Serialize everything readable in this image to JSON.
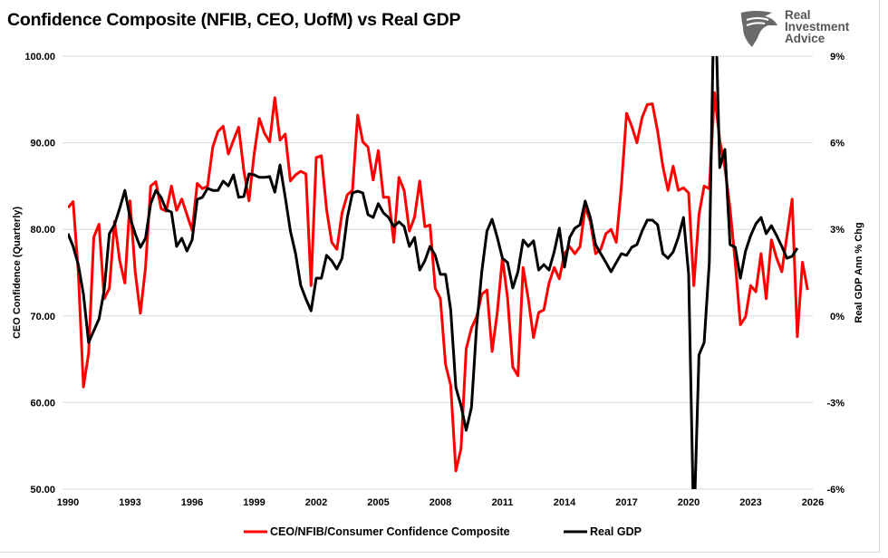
{
  "logo": {
    "text": "Real Investment Advice",
    "lines": [
      "Real",
      "Investment",
      "Advice"
    ]
  },
  "colors": {
    "series1": "#ff0000",
    "series2": "#000000",
    "grid": "#d9d9d9"
  },
  "chart_data": {
    "type": "line",
    "title": "Confidence Composite (NFIB, CEO, UofM) vs Real GDP",
    "ylabel": "CEO Confidence (Quarterly)",
    "y2label": "Real GDP Ann % Chg",
    "xlim": [
      1990,
      2026
    ],
    "ylim": [
      50,
      100
    ],
    "y2lim": [
      -6,
      9
    ],
    "xticks": [
      "1990",
      "1993",
      "1996",
      "1999",
      "2002",
      "2005",
      "2008",
      "2011",
      "2014",
      "2017",
      "2020",
      "2023",
      "2026"
    ],
    "yticks": [
      "100.00",
      "90.00",
      "80.00",
      "70.00",
      "60.00",
      "50.00"
    ],
    "y2ticks": [
      "9%",
      "6%",
      "3%",
      "0%",
      "-3%",
      "-6%"
    ],
    "grid": "horizontal",
    "legend_position": "bottom",
    "series": [
      {
        "name": "CEO/NFIB/Consumer Confidence Composite",
        "axis": "left",
        "frequency": "quarterly",
        "x_range": [
          "1990Q1",
          "2025Q4"
        ],
        "values": [
          82.5,
          83.2,
          75.1,
          61.8,
          65.7,
          79.1,
          80.6,
          72.0,
          73.2,
          80.9,
          76.4,
          73.8,
          83.3,
          75.1,
          70.3,
          75.6,
          85.0,
          85.5,
          82.4,
          82.1,
          85.0,
          82.2,
          83.5,
          81.7,
          79.9,
          85.3,
          84.7,
          85.0,
          89.5,
          91.3,
          91.9,
          88.7,
          90.3,
          91.8,
          86.8,
          83.3,
          88.7,
          92.8,
          91.1,
          90.1,
          95.2,
          90.3,
          91.0,
          85.6,
          86.3,
          86.7,
          86.4,
          73.5,
          88.3,
          88.5,
          82.3,
          78.5,
          77.7,
          81.9,
          84.0,
          84.5,
          93.2,
          90.1,
          89.5,
          85.7,
          89.1,
          83.7,
          83.7,
          78.5,
          86.0,
          84.5,
          79.8,
          81.4,
          85.6,
          80.3,
          80.5,
          73.2,
          72.0,
          64.4,
          62.0,
          52.1,
          54.7,
          66.2,
          68.6,
          69.9,
          72.5,
          73.0,
          65.9,
          70.4,
          76.7,
          72.0,
          64.1,
          63.1,
          75.6,
          72.0,
          67.5,
          70.4,
          70.7,
          73.8,
          75.6,
          74.3,
          77.2,
          78.0,
          77.2,
          78.0,
          82.6,
          80.9,
          77.2,
          77.7,
          79.5,
          80.0,
          78.5,
          85.0,
          93.4,
          91.9,
          90.0,
          92.9,
          94.4,
          94.5,
          91.3,
          87.3,
          84.5,
          87.3,
          84.5,
          84.8,
          84.2,
          73.5,
          81.7,
          85.0,
          84.7,
          95.8,
          90.3,
          87.1,
          82.4,
          76.2,
          69.0,
          69.9,
          73.5,
          72.8,
          77.2,
          72.0,
          78.8,
          76.7,
          75.1,
          79.3,
          83.5,
          67.6,
          76.2,
          73.0
        ]
      },
      {
        "name": "Real GDP",
        "axis": "right",
        "frequency": "quarterly",
        "x_range": [
          "1990Q1",
          "2025Q2"
        ],
        "values": [
          2.85,
          2.41,
          1.78,
          0.75,
          -0.92,
          -0.51,
          -0.1,
          0.9,
          2.85,
          3.16,
          3.73,
          4.35,
          3.41,
          2.85,
          2.38,
          2.69,
          3.89,
          4.35,
          4.11,
          3.67,
          3.6,
          2.41,
          2.69,
          2.25,
          2.63,
          4.04,
          4.11,
          4.42,
          4.35,
          4.35,
          4.67,
          4.51,
          4.89,
          4.11,
          4.14,
          4.92,
          4.89,
          4.8,
          4.8,
          4.83,
          4.29,
          5.23,
          4.11,
          2.94,
          2.16,
          1.06,
          0.59,
          0.18,
          1.31,
          1.31,
          2.1,
          1.91,
          1.63,
          2.0,
          3.41,
          4.26,
          4.32,
          4.26,
          3.51,
          3.41,
          3.89,
          3.57,
          3.41,
          3.1,
          3.26,
          3.1,
          2.41,
          2.72,
          1.59,
          1.91,
          2.41,
          2.1,
          1.44,
          1.44,
          0.21,
          -2.48,
          -3.11,
          -3.96,
          -3.17,
          -0.35,
          1.53,
          2.94,
          3.35,
          2.72,
          2.0,
          1.85,
          0.97,
          1.53,
          2.63,
          2.41,
          2.6,
          1.59,
          1.78,
          1.59,
          2.22,
          3.04,
          1.69,
          2.72,
          3.04,
          3.16,
          3.98,
          3.41,
          2.47,
          2.16,
          1.85,
          1.53,
          1.85,
          2.16,
          2.1,
          2.38,
          2.47,
          2.94,
          3.32,
          3.32,
          3.16,
          2.16,
          2.0,
          2.22,
          2.72,
          3.41,
          1.44,
          -7.5,
          -1.35,
          -0.92,
          1.85,
          12.0,
          5.14,
          5.77,
          2.47,
          2.38,
          1.31,
          2.25,
          2.79,
          3.19,
          3.41,
          2.85,
          3.13,
          2.79,
          2.41,
          2.0,
          2.07,
          2.35
        ]
      }
    ]
  }
}
